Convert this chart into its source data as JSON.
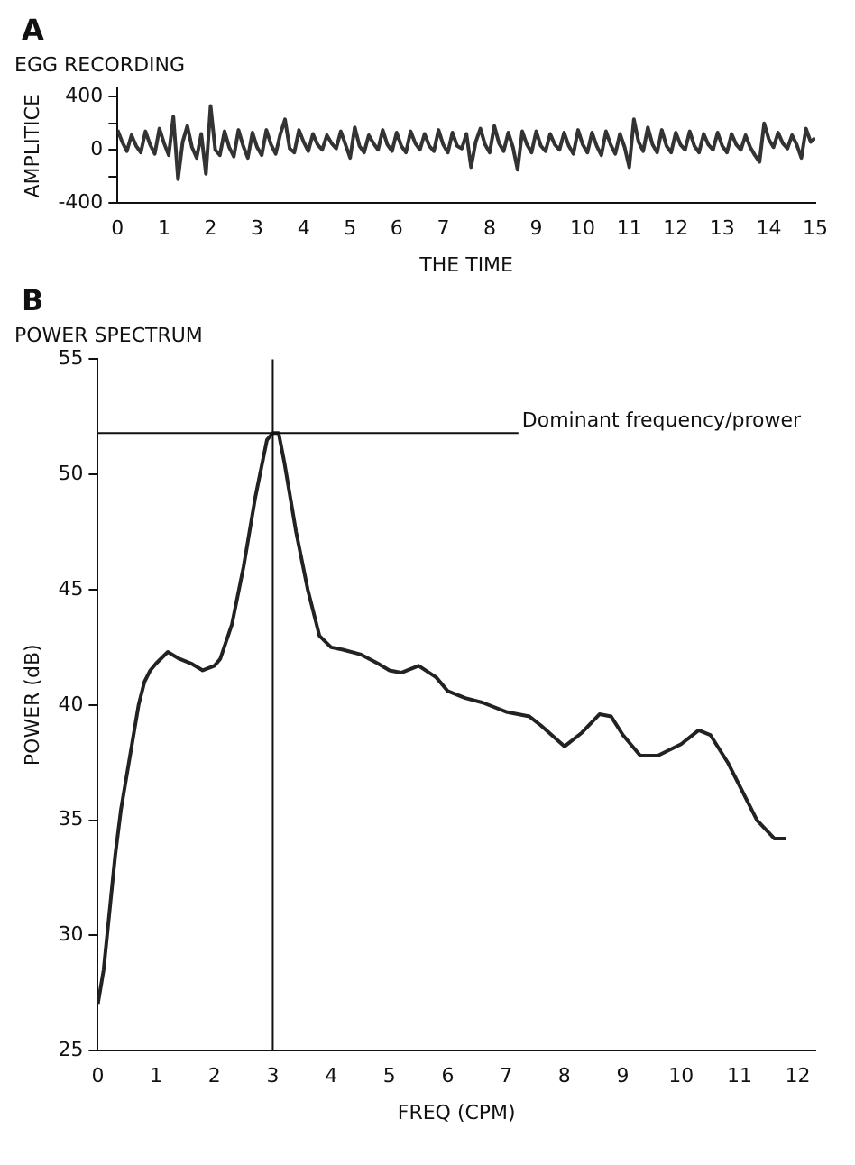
{
  "chart_data": [
    {
      "type": "line",
      "title": "EGG RECORDING",
      "xlabel": "THE TIME",
      "ylabel": "AMPLITICE",
      "annotations": [
        "A"
      ],
      "color": "#333333",
      "grid": false,
      "legend": false,
      "marker": "none",
      "line_style": "solid",
      "x": [
        0,
        0.1,
        0.2,
        0.3,
        0.4,
        0.5,
        0.6,
        0.7,
        0.8,
        0.9,
        1,
        1.1,
        1.2,
        1.3,
        1.4,
        1.5,
        1.6,
        1.7,
        1.8,
        1.9,
        2,
        2.1,
        2.2,
        2.3,
        2.4,
        2.5,
        2.6,
        2.7,
        2.8,
        2.9,
        3,
        3.1,
        3.2,
        3.3,
        3.4,
        3.5,
        3.6,
        3.7,
        3.8,
        3.9,
        4,
        4.1,
        4.2,
        4.3,
        4.4,
        4.5,
        4.6,
        4.7,
        4.8,
        4.9,
        5,
        5.1,
        5.2,
        5.3,
        5.4,
        5.5,
        5.6,
        5.7,
        5.8,
        5.9,
        6,
        6.1,
        6.2,
        6.3,
        6.4,
        6.5,
        6.6,
        6.7,
        6.8,
        6.9,
        7,
        7.1,
        7.2,
        7.3,
        7.4,
        7.5,
        7.6,
        7.7,
        7.8,
        7.9,
        8,
        8.1,
        8.2,
        8.3,
        8.4,
        8.5,
        8.6,
        8.7,
        8.8,
        8.9,
        9,
        9.1,
        9.2,
        9.3,
        9.4,
        9.5,
        9.6,
        9.7,
        9.8,
        9.9,
        10,
        10.1,
        10.2,
        10.3,
        10.4,
        10.5,
        10.6,
        10.7,
        10.8,
        10.9,
        11,
        11.1,
        11.2,
        11.3,
        11.4,
        11.5,
        11.6,
        11.7,
        11.8,
        11.9,
        12,
        12.1,
        12.2,
        12.3,
        12.4,
        12.5,
        12.6,
        12.7,
        12.8,
        12.9,
        13,
        13.1,
        13.2,
        13.3,
        13.4,
        13.5,
        13.6,
        13.7,
        13.8,
        13.9,
        14,
        14.1,
        14.2,
        14.3,
        14.4,
        14.5,
        14.6,
        14.7,
        14.8,
        14.9,
        15
      ],
      "values": [
        150,
        60,
        -10,
        110,
        30,
        -20,
        140,
        40,
        -30,
        160,
        50,
        -40,
        250,
        -220,
        60,
        180,
        20,
        -60,
        120,
        -180,
        330,
        0,
        -40,
        140,
        20,
        -50,
        150,
        30,
        -60,
        130,
        20,
        -40,
        150,
        40,
        -30,
        120,
        230,
        10,
        -20,
        150,
        60,
        -10,
        120,
        40,
        0,
        110,
        50,
        10,
        140,
        40,
        -60,
        170,
        30,
        -20,
        110,
        50,
        0,
        150,
        40,
        -10,
        130,
        30,
        -20,
        140,
        50,
        0,
        120,
        30,
        -10,
        150,
        40,
        -20,
        130,
        30,
        10,
        120,
        -130,
        60,
        160,
        40,
        -20,
        180,
        50,
        -10,
        130,
        20,
        -150,
        140,
        40,
        -20,
        140,
        30,
        -10,
        120,
        40,
        0,
        130,
        30,
        -30,
        150,
        40,
        -20,
        130,
        30,
        -40,
        140,
        40,
        -30,
        120,
        20,
        -130,
        230,
        60,
        -10,
        170,
        40,
        -20,
        150,
        30,
        -20,
        130,
        40,
        0,
        140,
        30,
        -20,
        120,
        40,
        0,
        130,
        30,
        -20,
        120,
        40,
        0,
        110,
        20,
        -40,
        -90,
        200,
        80,
        20,
        130,
        50,
        10,
        110,
        40,
        -60,
        160,
        60,
        90
      ],
      "xlim": [
        0,
        15
      ],
      "xticks": [
        0,
        1,
        2,
        3,
        4,
        5,
        6,
        7,
        8,
        9,
        10,
        11,
        12,
        13,
        14,
        15
      ],
      "ylim": [
        -400,
        460
      ],
      "yticks": [
        -400,
        {
          "value": -200,
          "label": null
        },
        0,
        {
          "value": 200,
          "label": null
        },
        400
      ]
    },
    {
      "type": "line",
      "title": "POWER SPECTRUM",
      "xlabel": "FREQ (CPM)",
      "ylabel": "POWER (dB)",
      "annotations": [
        "B"
      ],
      "color": "#222222",
      "grid": false,
      "legend": false,
      "marker": "none",
      "line_style": "solid",
      "x": [
        0,
        0.1,
        0.2,
        0.3,
        0.4,
        0.5,
        0.6,
        0.7,
        0.8,
        0.9,
        1,
        1.2,
        1.4,
        1.6,
        1.8,
        2,
        2.1,
        2.3,
        2.5,
        2.7,
        2.9,
        3,
        3.1,
        3.2,
        3.4,
        3.6,
        3.8,
        4,
        4.2,
        4.5,
        4.8,
        5,
        5.2,
        5.5,
        5.8,
        6,
        6.3,
        6.6,
        7,
        7.4,
        7.6,
        8,
        8.3,
        8.6,
        8.8,
        9,
        9.3,
        9.6,
        10,
        10.3,
        10.5,
        10.8,
        11,
        11.3,
        11.6,
        11.8
      ],
      "values": [
        27,
        28.5,
        31,
        33.5,
        35.5,
        37,
        38.5,
        40,
        41,
        41.5,
        41.8,
        42.3,
        42,
        41.8,
        41.5,
        41.7,
        42,
        43.5,
        46,
        49,
        51.5,
        51.8,
        51.8,
        50.5,
        47.5,
        45,
        43,
        42.5,
        42.4,
        42.2,
        41.8,
        41.5,
        41.4,
        41.7,
        41.2,
        40.6,
        40.3,
        40.1,
        39.7,
        39.5,
        39.1,
        38.2,
        38.8,
        39.6,
        39.5,
        38.7,
        37.8,
        37.8,
        38.3,
        38.9,
        38.7,
        37.5,
        36.5,
        35,
        34.2,
        34.2
      ],
      "xlim": [
        0,
        12.3
      ],
      "xticks": [
        0,
        1,
        2,
        3,
        4,
        5,
        6,
        7,
        8,
        9,
        10,
        11,
        12
      ],
      "ylim": [
        25,
        55
      ],
      "yticks": [
        25,
        30,
        35,
        40,
        45,
        50,
        55
      ],
      "ref_lines": [
        {
          "axis": "x",
          "value": 3
        },
        {
          "axis": "y",
          "value": 51.8,
          "label": "Dominant frequency/prower"
        }
      ]
    }
  ]
}
